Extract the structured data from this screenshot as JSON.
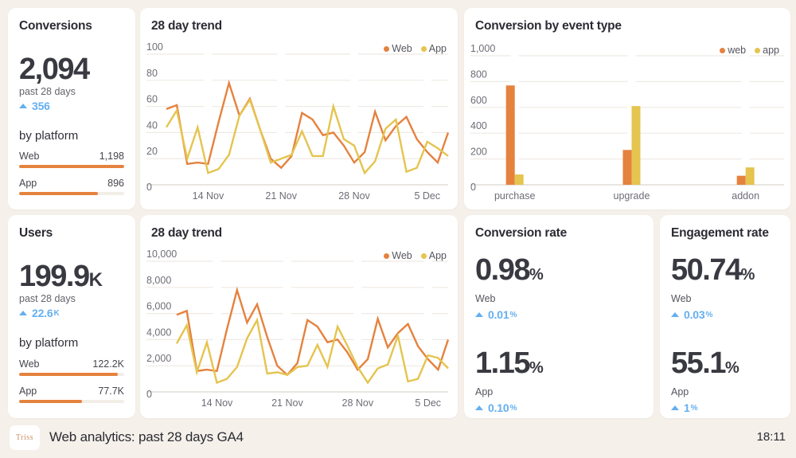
{
  "theme": {
    "bg": "#f5f0ea",
    "card_bg": "#ffffff",
    "web_color": "#e5823e",
    "app_color": "#e5c44f",
    "delta_color": "#64aff0",
    "grid_color": "#efeae4",
    "zero_line_color": "#dcd6d0",
    "axis_label_color": "#6d6d76",
    "title_color": "#2b2b33"
  },
  "kpi_cards": [
    {
      "title": "Conversions",
      "value": "2,094",
      "value_suffix": "",
      "period": "past 28 days",
      "delta": "356",
      "delta_suffix": "",
      "breakdown_label": "by platform",
      "platforms": [
        {
          "label": "Web",
          "value": "1,198",
          "bar_pct": 100
        },
        {
          "label": "App",
          "value": "896",
          "bar_pct": 75
        }
      ]
    },
    {
      "title": "Users",
      "value": "199.9",
      "value_suffix": "K",
      "period": "past 28 days",
      "delta": "22.6",
      "delta_suffix": "K",
      "breakdown_label": "by platform",
      "platforms": [
        {
          "label": "Web",
          "value": "122.2K",
          "bar_pct": 94
        },
        {
          "label": "App",
          "value": "77.7K",
          "bar_pct": 60
        }
      ]
    }
  ],
  "chart_data": [
    {
      "type": "line",
      "title": "28 day trend",
      "legend_position": "top-right",
      "grid": true,
      "ylim": [
        0,
        100
      ],
      "y_ticks": [
        {
          "value": 0,
          "label": "0"
        },
        {
          "value": 20,
          "label": "20"
        },
        {
          "value": 40,
          "label": "40"
        },
        {
          "value": 60,
          "label": "60"
        },
        {
          "value": 80,
          "label": "80"
        },
        {
          "value": 100,
          "label": "100"
        }
      ],
      "x_ticks": [
        {
          "index": 4,
          "label": "14 Nov"
        },
        {
          "index": 11,
          "label": "21 Nov"
        },
        {
          "index": 18,
          "label": "28 Nov"
        },
        {
          "index": 25,
          "label": "5 Dec"
        }
      ],
      "series": [
        {
          "name": "Web",
          "color_key": "web_color",
          "values": [
            58,
            61,
            16,
            17,
            16,
            48,
            78,
            53,
            66,
            42,
            20,
            13,
            22,
            55,
            50,
            38,
            40,
            30,
            17,
            25,
            56,
            34,
            45,
            52,
            35,
            25,
            17,
            40
          ]
        },
        {
          "name": "App",
          "color_key": "app_color",
          "values": [
            44,
            57,
            20,
            44,
            9,
            12,
            23,
            53,
            65,
            42,
            17,
            20,
            23,
            41,
            22,
            22,
            60,
            35,
            30,
            9,
            18,
            43,
            50,
            10,
            13,
            33,
            28,
            22
          ]
        }
      ]
    },
    {
      "type": "bar",
      "title": "Conversion by event type",
      "legend_position": "top-right",
      "grid": true,
      "ylim": [
        0,
        1000
      ],
      "y_ticks": [
        {
          "value": 0,
          "label": "0"
        },
        {
          "value": 200,
          "label": "200"
        },
        {
          "value": 400,
          "label": "400"
        },
        {
          "value": 600,
          "label": "600"
        },
        {
          "value": 800,
          "label": "800"
        },
        {
          "value": 1000,
          "label": "1,000"
        }
      ],
      "categories": [
        "purchase",
        "upgrade",
        "addon"
      ],
      "series": [
        {
          "name": "web",
          "color_key": "web_color",
          "values": [
            770,
            270,
            70
          ]
        },
        {
          "name": "app",
          "color_key": "app_color",
          "values": [
            80,
            610,
            135
          ]
        }
      ]
    },
    {
      "type": "line",
      "title": "28 day trend",
      "legend_position": "top-right",
      "grid": true,
      "ylim": [
        0,
        10000
      ],
      "y_ticks": [
        {
          "value": 0,
          "label": "0"
        },
        {
          "value": 2000,
          "label": "2,000"
        },
        {
          "value": 4000,
          "label": "4,000"
        },
        {
          "value": 6000,
          "label": "6,000"
        },
        {
          "value": 8000,
          "label": "8,000"
        },
        {
          "value": 10000,
          "label": "10,000"
        }
      ],
      "x_ticks": [
        {
          "index": 4,
          "label": "14 Nov"
        },
        {
          "index": 11,
          "label": "21 Nov"
        },
        {
          "index": 18,
          "label": "28 Nov"
        },
        {
          "index": 25,
          "label": "5 Dec"
        }
      ],
      "series": [
        {
          "name": "Web",
          "color_key": "web_color",
          "values": [
            5900,
            6200,
            1600,
            1700,
            1600,
            4800,
            7800,
            5300,
            6700,
            4200,
            2000,
            1300,
            2200,
            5500,
            5000,
            3800,
            4000,
            3000,
            1700,
            2500,
            5600,
            3400,
            4500,
            5200,
            3500,
            2500,
            1700,
            4000
          ]
        },
        {
          "name": "App",
          "color_key": "app_color",
          "values": [
            3700,
            5100,
            1500,
            3800,
            700,
            1000,
            1900,
            4100,
            5500,
            1400,
            1500,
            1300,
            1900,
            2000,
            3600,
            1900,
            5000,
            3500,
            1900,
            700,
            1800,
            2100,
            4300,
            800,
            1000,
            2800,
            2600,
            1800
          ]
        }
      ]
    }
  ],
  "rate_cards": [
    {
      "title": "Conversion rate",
      "metrics": [
        {
          "value": "0.98",
          "suffix": "%",
          "label": "Web",
          "delta": "0.01",
          "delta_suffix": "%"
        },
        {
          "value": "1.15",
          "suffix": "%",
          "label": "App",
          "delta": "0.10",
          "delta_suffix": "%"
        }
      ]
    },
    {
      "title": "Engagement rate",
      "metrics": [
        {
          "value": "50.74",
          "suffix": "%",
          "label": "Web",
          "delta": "0.03",
          "delta_suffix": "%"
        },
        {
          "value": "55.1",
          "suffix": "%",
          "label": "App",
          "delta": "1",
          "delta_suffix": "%"
        }
      ]
    }
  ],
  "footer": {
    "logo_text": "Triss",
    "title": "Web analytics: past 28 days GA4",
    "time": "18:11"
  }
}
